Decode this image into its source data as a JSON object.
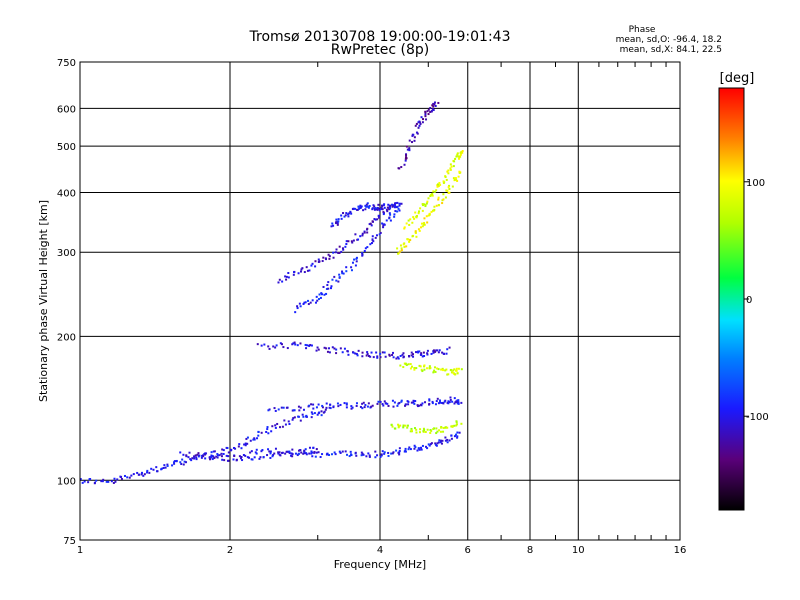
{
  "chart_data": {
    "type": "scatter",
    "title": "Tromsø 20130708 19:00:00-19:01:43",
    "subtitle": "RwPretec (8p)",
    "xlabel": "Frequency [MHz]",
    "ylabel": "Stationary phase Virtual Height [km]",
    "x_scale": "log",
    "y_scale": "log",
    "xlim": [
      1,
      16
    ],
    "ylim": [
      75,
      750
    ],
    "x_ticks": [
      1,
      2,
      4,
      6,
      8,
      10,
      16
    ],
    "x_tick_labels": [
      "1",
      "2",
      "4",
      "6",
      "8",
      "10",
      "16"
    ],
    "x_minor_ticks": [
      3,
      5,
      7,
      9,
      11,
      12,
      13,
      14,
      15
    ],
    "y_ticks": [
      75,
      100,
      200,
      300,
      400,
      500,
      600,
      750
    ],
    "y_tick_labels": [
      "75",
      "100",
      "200",
      "300",
      "400",
      "500",
      "600",
      "750"
    ],
    "grid": true,
    "colorbar": {
      "label": "[deg]",
      "min": -180,
      "max": 180,
      "ticks": [
        100,
        0,
        -100
      ],
      "tick_labels": [
        "100",
        "0",
        "-100"
      ]
    },
    "phase_stats": {
      "heading": "Phase",
      "line_o": "mean, sd,O: -96.4, 18.2",
      "line_x": "mean, sd,X: 84.1, 22.5"
    },
    "traces": [
      {
        "x": [
          1.0,
          1.15,
          1.3,
          1.45,
          1.6,
          1.75,
          1.9,
          2.1,
          2.3,
          2.6,
          2.9,
          3.2
        ],
        "y": [
          100,
          99,
          103,
          106,
          109,
          112,
          114,
          118,
          125,
          132,
          137,
          141
        ],
        "phase": -100
      },
      {
        "x": [
          1.6,
          1.8,
          2.0,
          2.2,
          2.5,
          2.8,
          3.0
        ],
        "y": [
          114,
          112,
          111,
          112,
          113,
          114,
          116
        ],
        "phase": -105
      },
      {
        "x": [
          2.2,
          2.6,
          3.0,
          3.4,
          3.8,
          4.2,
          4.6,
          5.0,
          5.4,
          5.8
        ],
        "y": [
          115,
          115,
          113,
          114,
          113,
          114,
          116,
          118,
          121,
          126
        ],
        "phase": -95
      },
      {
        "x": [
          2.4,
          2.8,
          3.2,
          3.6,
          4.0,
          4.4,
          4.8,
          5.2,
          5.6,
          5.8
        ],
        "y": [
          141,
          142,
          143,
          143,
          144,
          145,
          145,
          146,
          147,
          146
        ],
        "phase": -100
      },
      {
        "x": [
          2.3,
          2.7,
          3.1,
          3.5,
          3.9,
          4.3,
          4.7,
          5.1,
          5.5
        ],
        "y": [
          190,
          192,
          188,
          185,
          183,
          182,
          183,
          185,
          187
        ],
        "phase": -105
      },
      {
        "x": [
          2.5,
          2.8,
          3.1,
          3.4,
          3.7,
          4.0,
          4.3
        ],
        "y": [
          262,
          275,
          290,
          308,
          330,
          355,
          385
        ],
        "phase": -110
      },
      {
        "x": [
          2.7,
          3.0,
          3.2,
          3.5,
          3.8,
          4.1,
          4.4
        ],
        "y": [
          228,
          240,
          258,
          280,
          310,
          345,
          375
        ],
        "phase": -95
      },
      {
        "x": [
          3.2,
          3.4,
          3.6,
          3.8,
          4.0,
          4.2,
          4.4
        ],
        "y": [
          340,
          360,
          370,
          375,
          372,
          375,
          380
        ],
        "phase": -100
      },
      {
        "x": [
          4.3,
          4.6,
          4.9,
          5.2,
          5.5,
          5.8
        ],
        "y": [
          300,
          320,
          345,
          375,
          410,
          445
        ],
        "phase": 95
      },
      {
        "x": [
          4.5,
          4.8,
          5.1,
          5.4,
          5.7,
          5.85
        ],
        "y": [
          340,
          365,
          395,
          430,
          470,
          490
        ],
        "phase": 85
      },
      {
        "x": [
          4.4,
          4.8,
          5.2,
          5.6,
          5.8
        ],
        "y": [
          175,
          172,
          170,
          168,
          170
        ],
        "phase": 80
      },
      {
        "x": [
          4.2,
          4.6,
          5.0,
          5.4,
          5.8
        ],
        "y": [
          130,
          128,
          127,
          128,
          132
        ],
        "phase": 70
      },
      {
        "x": [
          4.4,
          4.6,
          4.8,
          5.0,
          5.2
        ],
        "y": [
          450,
          500,
          560,
          590,
          620
        ],
        "phase": -120
      }
    ]
  }
}
